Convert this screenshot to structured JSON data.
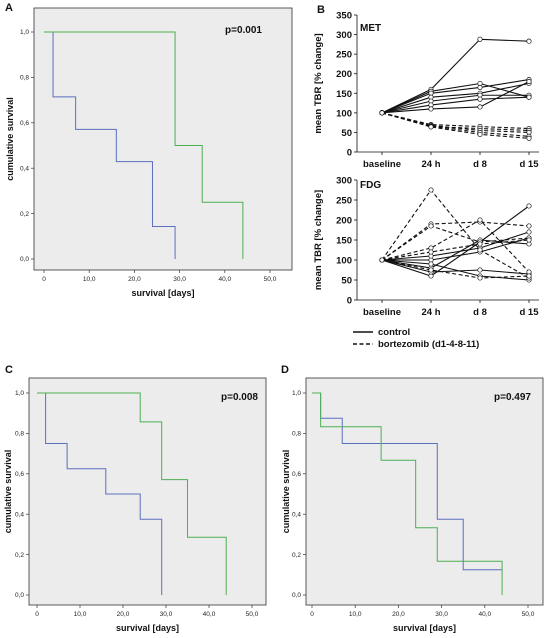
{
  "colors": {
    "group_blue": "#5b6fc0",
    "group_green": "#4caf50",
    "line_black": "#111111"
  },
  "chart_data": [
    {
      "id": "A",
      "type": "line",
      "panel_label": "A",
      "annotation": "p=0.001",
      "xlabel": "survival [days]",
      "ylabel": "cumulative survival",
      "xlim": [
        0,
        50
      ],
      "ylim": [
        0,
        1
      ],
      "xticks": [
        "0",
        "10,0",
        "20,0",
        "30,0",
        "40,0",
        "50,0"
      ],
      "yticks": [
        "0,0",
        "0,2",
        "0,4",
        "0,6",
        "0,8",
        "1,0"
      ],
      "grid": false,
      "series": [
        {
          "color": "#5b6fc0",
          "steps": [
            [
              0,
              1.0
            ],
            [
              2,
              0.714
            ],
            [
              7,
              0.571
            ],
            [
              16,
              0.429
            ],
            [
              24,
              0.143
            ],
            [
              29,
              0.0
            ]
          ]
        },
        {
          "color": "#4caf50",
          "steps": [
            [
              0,
              1.0
            ],
            [
              29,
              0.5
            ],
            [
              35,
              0.25
            ],
            [
              44,
              0.0
            ]
          ]
        }
      ]
    },
    {
      "id": "B1",
      "type": "line",
      "panel_label": "B",
      "subtitle": "MET",
      "xlabel": "",
      "ylabel": "mean TBR [% change]",
      "categories": [
        "baseline",
        "24 h",
        "d 8",
        "d 15"
      ],
      "ylim": [
        0,
        350
      ],
      "yticks": [
        0,
        50,
        100,
        150,
        200,
        250,
        300,
        350
      ],
      "series": [
        {
          "group": "control",
          "values": [
            100,
            160,
            288,
            283
          ]
        },
        {
          "group": "control",
          "values": [
            100,
            155,
            175,
            140
          ]
        },
        {
          "group": "control",
          "values": [
            100,
            150,
            165,
            185
          ]
        },
        {
          "group": "control",
          "values": [
            100,
            140,
            150,
            175
          ]
        },
        {
          "group": "control",
          "values": [
            100,
            130,
            145,
            145
          ]
        },
        {
          "group": "control",
          "values": [
            100,
            120,
            135,
            140
          ]
        },
        {
          "group": "control",
          "values": [
            100,
            110,
            115,
            180
          ]
        },
        {
          "group": "bortezomib",
          "values": [
            100,
            70,
            65,
            60
          ]
        },
        {
          "group": "bortezomib",
          "values": [
            100,
            65,
            60,
            55
          ]
        },
        {
          "group": "bortezomib",
          "values": [
            100,
            68,
            55,
            50
          ]
        },
        {
          "group": "bortezomib",
          "values": [
            100,
            66,
            50,
            40
          ]
        },
        {
          "group": "bortezomib",
          "values": [
            100,
            64,
            45,
            35
          ]
        }
      ]
    },
    {
      "id": "B2",
      "type": "line",
      "subtitle": "FDG",
      "xlabel": "",
      "ylabel": "mean TBR [% change]",
      "categories": [
        "baseline",
        "24 h",
        "d 8",
        "d 15"
      ],
      "ylim": [
        0,
        300
      ],
      "yticks": [
        0,
        50,
        100,
        150,
        200,
        250,
        300
      ],
      "series": [
        {
          "group": "control",
          "values": [
            100,
            60,
            145,
            235
          ]
        },
        {
          "group": "control",
          "values": [
            100,
            80,
            150,
            140
          ]
        },
        {
          "group": "control",
          "values": [
            100,
            100,
            120,
            155
          ]
        },
        {
          "group": "control",
          "values": [
            100,
            110,
            130,
            170
          ]
        },
        {
          "group": "control",
          "values": [
            100,
            70,
            75,
            65
          ]
        },
        {
          "group": "control",
          "values": [
            100,
            90,
            60,
            50
          ]
        },
        {
          "group": "bortezomib",
          "values": [
            100,
            275,
            125,
            55
          ]
        },
        {
          "group": "bortezomib",
          "values": [
            100,
            190,
            195,
            185
          ]
        },
        {
          "group": "bortezomib",
          "values": [
            100,
            185,
            145,
            155
          ]
        },
        {
          "group": "bortezomib",
          "values": [
            100,
            130,
            200,
            70
          ]
        },
        {
          "group": "bortezomib",
          "values": [
            100,
            120,
            140,
            150
          ]
        },
        {
          "group": "bortezomib",
          "values": [
            100,
            75,
            55,
            60
          ]
        }
      ]
    },
    {
      "id": "C",
      "type": "line",
      "panel_label": "C",
      "annotation": "p=0.008",
      "xlabel": "survival [days]",
      "ylabel": "cumulative survival",
      "xlim": [
        0,
        50
      ],
      "ylim": [
        0,
        1
      ],
      "xticks": [
        "0",
        "10,0",
        "20,0",
        "30,0",
        "40,0",
        "50,0"
      ],
      "yticks": [
        "0,0",
        "0,2",
        "0,4",
        "0,6",
        "0,8",
        "1,0"
      ],
      "grid": false,
      "series": [
        {
          "color": "#5b6fc0",
          "steps": [
            [
              0,
              1.0
            ],
            [
              2,
              0.75
            ],
            [
              7,
              0.625
            ],
            [
              16,
              0.5
            ],
            [
              24,
              0.375
            ],
            [
              29,
              0.0
            ]
          ]
        },
        {
          "color": "#4caf50",
          "steps": [
            [
              0,
              1.0
            ],
            [
              24,
              0.857
            ],
            [
              29,
              0.571
            ],
            [
              35,
              0.286
            ],
            [
              44,
              0.0
            ]
          ]
        }
      ]
    },
    {
      "id": "D",
      "type": "line",
      "panel_label": "D",
      "annotation": "p=0.497",
      "xlabel": "survival [days]",
      "ylabel": "cumulative survival",
      "xlim": [
        0,
        50
      ],
      "ylim": [
        0,
        1
      ],
      "xticks": [
        "0",
        "10,0",
        "20,0",
        "30,0",
        "40,0",
        "50,0"
      ],
      "yticks": [
        "0,0",
        "0,2",
        "0,4",
        "0,6",
        "0,8",
        "1,0"
      ],
      "grid": false,
      "series": [
        {
          "color": "#5b6fc0",
          "steps": [
            [
              0,
              1.0
            ],
            [
              2,
              0.875
            ],
            [
              7,
              0.75
            ],
            [
              29,
              0.375
            ],
            [
              35,
              0.125
            ],
            [
              44,
              0.125
            ]
          ]
        },
        {
          "color": "#4caf50",
          "steps": [
            [
              0,
              1.0
            ],
            [
              2,
              0.833
            ],
            [
              16,
              0.667
            ],
            [
              24,
              0.333
            ],
            [
              29,
              0.167
            ],
            [
              44,
              0.0
            ]
          ]
        }
      ]
    }
  ],
  "legend": {
    "placement": "bottom",
    "entries": [
      {
        "label": "control",
        "dash": false
      },
      {
        "label": "bortezomib (d1-4-8-11)",
        "dash": true
      }
    ]
  }
}
